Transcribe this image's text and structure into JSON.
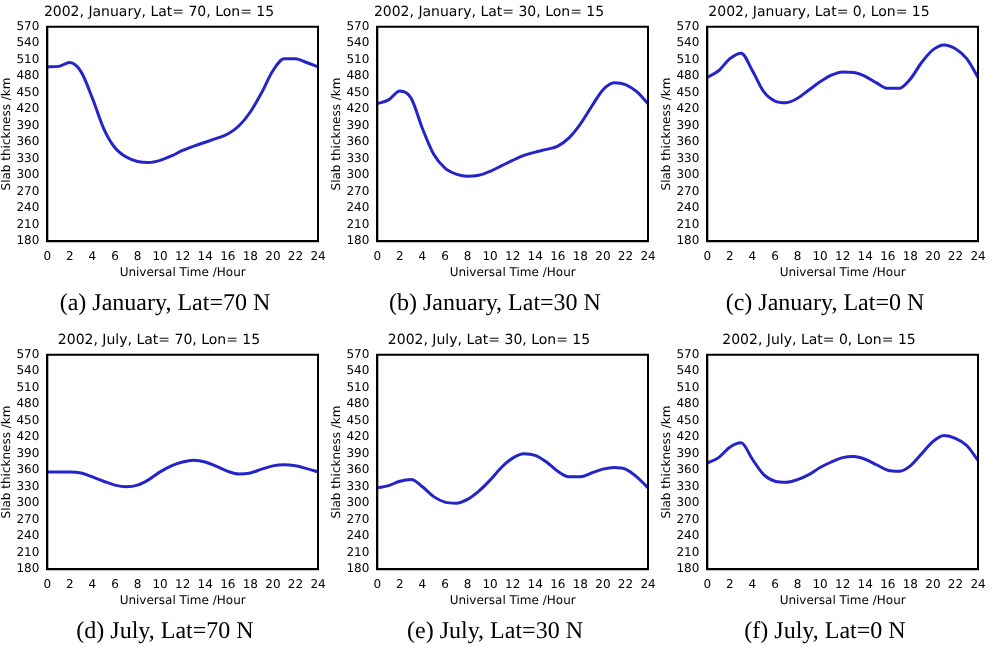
{
  "chart_data": [
    {
      "type": "line",
      "title": "2002, January, Lat= 70, Lon= 15",
      "xlabel": "Universal Time /Hour",
      "ylabel": "Slab thickness /km",
      "annotations": [
        "(a) January, Lat=70 N"
      ],
      "color": "#2424c8",
      "xlim": [
        0,
        24
      ],
      "xticks": [
        0,
        2,
        4,
        6,
        8,
        10,
        12,
        14,
        16,
        18,
        20,
        22,
        24
      ],
      "ylim": [
        180,
        570
      ],
      "yticks": [
        180,
        210,
        240,
        270,
        300,
        330,
        360,
        390,
        420,
        450,
        480,
        510,
        540,
        570
      ],
      "x": [
        0,
        1,
        2,
        3,
        4,
        5,
        6,
        7,
        8,
        9,
        10,
        11,
        12,
        13,
        14,
        15,
        16,
        17,
        18,
        19,
        20,
        21,
        22,
        23,
        24
      ],
      "values": [
        497,
        498,
        505,
        488,
        440,
        385,
        350,
        333,
        325,
        323,
        327,
        335,
        345,
        353,
        360,
        367,
        375,
        390,
        415,
        450,
        490,
        512,
        512,
        505,
        497
      ]
    },
    {
      "type": "line",
      "title": "2002, January, Lat= 30, Lon= 15",
      "xlabel": "Universal Time /Hour",
      "ylabel": "Slab thickness /km",
      "annotations": [
        "(b) January, Lat=30 N"
      ],
      "color": "#2424c8",
      "xlim": [
        0,
        24
      ],
      "xticks": [
        0,
        2,
        4,
        6,
        8,
        10,
        12,
        14,
        16,
        18,
        20,
        22,
        24
      ],
      "ylim": [
        180,
        570
      ],
      "yticks": [
        180,
        210,
        240,
        270,
        300,
        330,
        360,
        390,
        420,
        450,
        480,
        510,
        540,
        570
      ],
      "x": [
        0,
        1,
        2,
        3,
        4,
        5,
        6,
        7,
        8,
        9,
        10,
        11,
        12,
        13,
        14,
        15,
        16,
        17,
        18,
        19,
        20,
        21,
        22,
        23,
        24
      ],
      "values": [
        430,
        437,
        453,
        440,
        385,
        338,
        313,
        302,
        298,
        300,
        307,
        317,
        327,
        336,
        342,
        347,
        353,
        368,
        393,
        425,
        455,
        468,
        465,
        452,
        430
      ]
    },
    {
      "type": "line",
      "title": "2002, January, Lat= 0, Lon= 15",
      "xlabel": "Universal Time /Hour",
      "ylabel": "Slab thickness /km",
      "annotations": [
        "(c) January, Lat=0 N"
      ],
      "color": "#2424c8",
      "xlim": [
        0,
        24
      ],
      "xticks": [
        0,
        2,
        4,
        6,
        8,
        10,
        12,
        14,
        16,
        18,
        20,
        22,
        24
      ],
      "ylim": [
        180,
        570
      ],
      "yticks": [
        180,
        210,
        240,
        270,
        300,
        330,
        360,
        390,
        420,
        450,
        480,
        510,
        540,
        570
      ],
      "x": [
        0,
        1,
        2,
        3,
        4,
        5,
        6,
        7,
        8,
        9,
        10,
        11,
        12,
        13,
        14,
        15,
        16,
        17,
        18,
        19,
        20,
        21,
        22,
        23,
        24
      ],
      "values": [
        478,
        490,
        512,
        522,
        490,
        452,
        435,
        432,
        440,
        455,
        470,
        482,
        488,
        487,
        480,
        468,
        458,
        458,
        475,
        505,
        528,
        537,
        530,
        512,
        478
      ]
    },
    {
      "type": "line",
      "title": "2002, July, Lat= 70, Lon= 15",
      "xlabel": "Universal Time /Hour",
      "ylabel": "Slab thickness /km",
      "annotations": [
        "(d) July, Lat=70 N"
      ],
      "color": "#2424c8",
      "xlim": [
        0,
        24
      ],
      "xticks": [
        0,
        2,
        4,
        6,
        8,
        10,
        12,
        14,
        16,
        18,
        20,
        22,
        24
      ],
      "ylim": [
        180,
        570
      ],
      "yticks": [
        180,
        210,
        240,
        270,
        300,
        330,
        360,
        390,
        420,
        450,
        480,
        510,
        540,
        570
      ],
      "x": [
        0,
        1,
        2,
        3,
        4,
        5,
        6,
        7,
        8,
        9,
        10,
        11,
        12,
        13,
        14,
        15,
        16,
        17,
        18,
        19,
        20,
        21,
        22,
        23,
        24
      ],
      "values": [
        357,
        357,
        357,
        355,
        348,
        340,
        333,
        330,
        333,
        343,
        357,
        368,
        375,
        378,
        375,
        367,
        358,
        353,
        355,
        362,
        368,
        370,
        368,
        363,
        357
      ]
    },
    {
      "type": "line",
      "title": "2002, July, Lat= 30, Lon= 15",
      "xlabel": "Universal Time /Hour",
      "ylabel": "Slab thickness /km",
      "annotations": [
        "(e) July, Lat=30 N"
      ],
      "color": "#2424c8",
      "xlim": [
        0,
        24
      ],
      "xticks": [
        0,
        2,
        4,
        6,
        8,
        10,
        12,
        14,
        16,
        18,
        20,
        22,
        24
      ],
      "ylim": [
        180,
        570
      ],
      "yticks": [
        180,
        210,
        240,
        270,
        300,
        330,
        360,
        390,
        420,
        450,
        480,
        510,
        540,
        570
      ],
      "x": [
        0,
        1,
        2,
        3,
        4,
        5,
        6,
        7,
        8,
        9,
        10,
        11,
        12,
        13,
        14,
        15,
        16,
        17,
        18,
        19,
        20,
        21,
        22,
        23,
        24
      ],
      "values": [
        328,
        332,
        340,
        343,
        330,
        312,
        302,
        300,
        307,
        322,
        342,
        365,
        382,
        390,
        387,
        375,
        358,
        348,
        348,
        355,
        362,
        365,
        362,
        348,
        328
      ]
    },
    {
      "type": "line",
      "title": "2002, July, Lat= 0, Lon= 15",
      "xlabel": "Universal Time /Hour",
      "ylabel": "Slab thickness /km",
      "annotations": [
        "(f) July, Lat=0 N"
      ],
      "color": "#2424c8",
      "xlim": [
        0,
        24
      ],
      "xticks": [
        0,
        2,
        4,
        6,
        8,
        10,
        12,
        14,
        16,
        18,
        20,
        22,
        24
      ],
      "ylim": [
        180,
        570
      ],
      "yticks": [
        180,
        210,
        240,
        270,
        300,
        330,
        360,
        390,
        420,
        450,
        480,
        510,
        540,
        570
      ],
      "x": [
        0,
        1,
        2,
        3,
        4,
        5,
        6,
        7,
        8,
        9,
        10,
        11,
        12,
        13,
        14,
        15,
        16,
        17,
        18,
        19,
        20,
        21,
        22,
        23,
        24
      ],
      "values": [
        373,
        383,
        402,
        410,
        380,
        352,
        340,
        338,
        343,
        352,
        365,
        375,
        383,
        385,
        380,
        370,
        360,
        358,
        368,
        390,
        412,
        423,
        418,
        405,
        378
      ]
    }
  ]
}
